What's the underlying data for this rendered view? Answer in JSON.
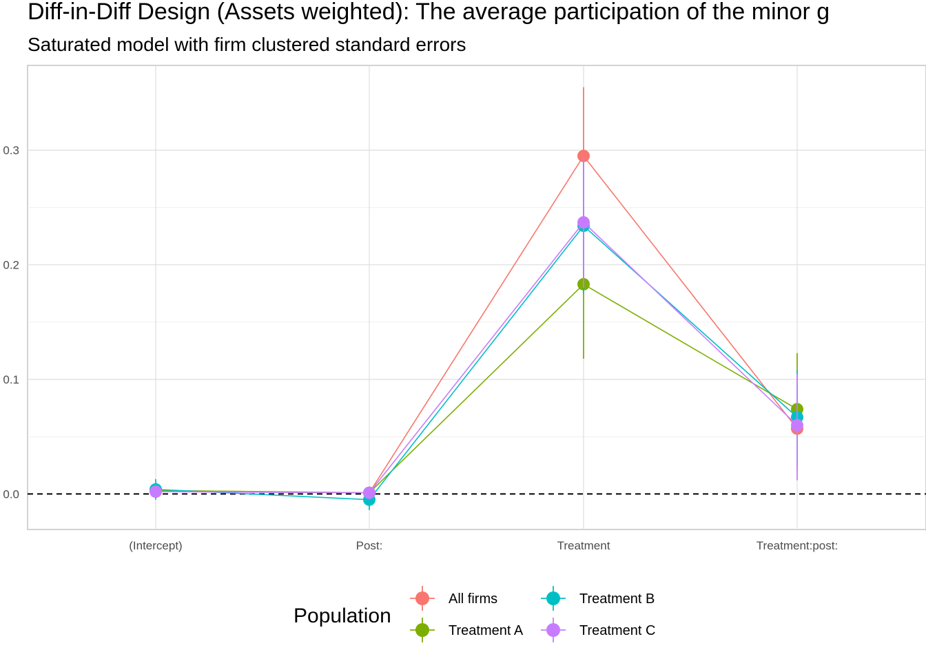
{
  "chart_data": {
    "type": "line",
    "title": "Diff-in-Diff Design (Assets weighted): The average participation of the minor g",
    "subtitle": "Saturated model with firm clustered standard errors",
    "xlabel": "",
    "ylabel": "",
    "categories": [
      "(Intercept)",
      "Post:",
      "Treatment",
      "Treatment:post:"
    ],
    "ylim": [
      -0.031,
      0.374
    ],
    "yticks": [
      0.0,
      0.1,
      0.2,
      0.3
    ],
    "ytick_labels": [
      "0.0",
      "0.1",
      "0.2",
      "0.3"
    ],
    "reference_line": 0.0,
    "grid": true,
    "legend": {
      "title": "Population",
      "position": "bottom"
    },
    "series": [
      {
        "name": "All firms",
        "color": "#F8766D",
        "values": [
          0.003,
          0.001,
          0.295,
          0.057
        ],
        "lower": [
          0.0,
          -0.003,
          0.24,
          0.02
        ],
        "upper": [
          0.006,
          0.005,
          0.355,
          0.095
        ]
      },
      {
        "name": "Treatment A",
        "color": "#7CAE00",
        "values": [
          0.003,
          0.001,
          0.183,
          0.074
        ],
        "lower": [
          0.0,
          -0.003,
          0.118,
          0.025
        ],
        "upper": [
          0.006,
          0.005,
          0.248,
          0.123
        ]
      },
      {
        "name": "Treatment B",
        "color": "#00BFC4",
        "values": [
          0.004,
          -0.005,
          0.234,
          0.067
        ],
        "lower": [
          -0.005,
          -0.014,
          0.175,
          0.03
        ],
        "upper": [
          0.013,
          0.004,
          0.293,
          0.108
        ]
      },
      {
        "name": "Treatment C",
        "color": "#C77CFF",
        "values": [
          0.002,
          0.001,
          0.237,
          0.06
        ],
        "lower": [
          -0.001,
          -0.003,
          0.18,
          0.012
        ],
        "upper": [
          0.005,
          0.005,
          0.294,
          0.105
        ]
      }
    ]
  }
}
